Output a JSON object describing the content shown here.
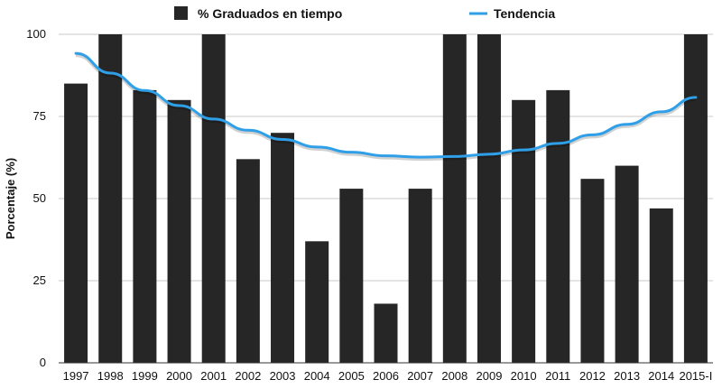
{
  "chart_data": {
    "type": "bar",
    "categories": [
      "1997",
      "1998",
      "1999",
      "2000",
      "2001",
      "2002",
      "2003",
      "2004",
      "2005",
      "2006",
      "2007",
      "2008",
      "2009",
      "2010",
      "2011",
      "2012",
      "2013",
      "2014",
      "2015-I"
    ],
    "series": [
      {
        "name": "% Graduados en tiempo",
        "values": [
          85,
          100,
          83,
          80,
          100,
          62,
          70,
          37,
          53,
          18,
          53,
          100,
          100,
          80,
          83,
          56,
          60,
          47,
          100
        ]
      }
    ],
    "trend": {
      "name": "Tendencia",
      "values": [
        94.2,
        88.2,
        82.9,
        78.3,
        74.2,
        70.8,
        68.0,
        65.7,
        64.1,
        63.0,
        62.6,
        62.8,
        63.5,
        64.8,
        66.8,
        69.4,
        72.6,
        76.4,
        80.8
      ]
    },
    "title": "",
    "xlabel": "",
    "ylabel": "Porcentaje (%)",
    "ylim": [
      0,
      100
    ],
    "yticks": [
      0,
      25,
      50,
      75,
      100
    ],
    "grid": true,
    "legend": "top-center",
    "colors": {
      "bars": "#262626",
      "trend": "#2f9fe8",
      "grid": "#c8c8c8"
    }
  }
}
